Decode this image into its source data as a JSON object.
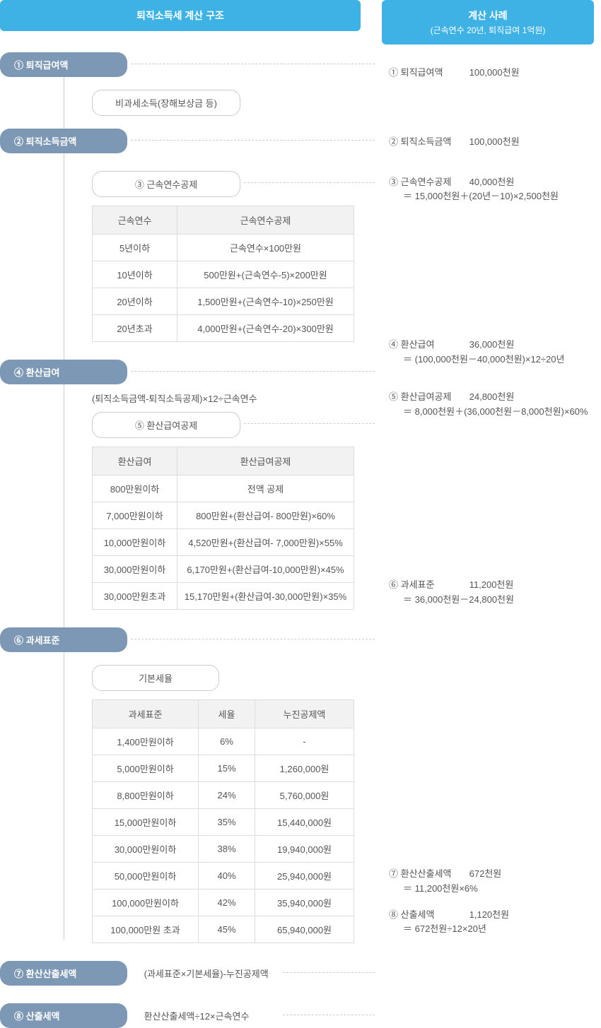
{
  "headers": {
    "left": "퇴직소득세 계산 구조",
    "right_title": "계산 사례",
    "right_sub": "(근속연수 20년, 퇴직급여 1억원)"
  },
  "steps": {
    "s1": {
      "badge": "① 퇴직급여액",
      "sub": "비과세소득(장해보상금 등)"
    },
    "s2": {
      "badge": "② 퇴직소득금액"
    },
    "s3": {
      "sub": "③ 근속연수공제"
    },
    "s4": {
      "badge": "④ 환산급여",
      "formula": "(퇴직소득금액-퇴직소득공제)×12÷근속연수"
    },
    "s5": {
      "sub": "⑤ 환산급여공제"
    },
    "s6": {
      "badge": "⑥ 과세표준",
      "sub": "기본세율"
    },
    "s7": {
      "badge": "⑦ 환산산출세액",
      "formula": "(과세표준×기본세율)-누진공제액"
    },
    "s8": {
      "badge": "⑧ 산출세액",
      "formula": "환산산출세액÷12×근속연수"
    }
  },
  "table1": {
    "headers": [
      "근속연수",
      "근속연수공제"
    ],
    "rows": [
      [
        "5년이하",
        "근속연수×100만원"
      ],
      [
        "10년이하",
        "500만원+(근속연수-5)×200만원"
      ],
      [
        "20년이하",
        "1,500만원+(근속연수-10)×250만원"
      ],
      [
        "20년초과",
        "4,000만원+(근속연수-20)×300만원"
      ]
    ],
    "col_widths": [
      "120px",
      "250px"
    ]
  },
  "table2": {
    "headers": [
      "환산급여",
      "환산급여공제"
    ],
    "rows": [
      [
        "800만원이하",
        "전액 공제"
      ],
      [
        "7,000만원이하",
        "800만원+(환산급여- 800만원)×60%"
      ],
      [
        "10,000만원이하",
        "4,520만원+(환산급여- 7,000만원)×55%"
      ],
      [
        "30,000만원이하",
        "6,170만원+(환산급여-10,000만원)×45%"
      ],
      [
        "30,000만원초과",
        "15,170만원+(환산급여-30,000만원)×35%"
      ]
    ],
    "col_widths": [
      "120px",
      "250px"
    ]
  },
  "table3": {
    "headers": [
      "과세표준",
      "세율",
      "누진공제액"
    ],
    "rows": [
      [
        "1,400만원이하",
        "6%",
        "-"
      ],
      [
        "5,000만원이하",
        "15%",
        "1,260,000원"
      ],
      [
        "8,800만원이하",
        "24%",
        "5,760,000원"
      ],
      [
        "15,000만원이하",
        "35%",
        "15,440,000원"
      ],
      [
        "30,000만원이하",
        "38%",
        "19,940,000원"
      ],
      [
        "50,000만원이하",
        "40%",
        "25,940,000원"
      ],
      [
        "100,000만원이하",
        "42%",
        "35,940,000원"
      ],
      [
        "100,000만원 초과",
        "45%",
        "65,940,000원"
      ]
    ],
    "col_widths": [
      "150px",
      "80px",
      "140px"
    ]
  },
  "examples": {
    "e1": {
      "label": "① 퇴직급여액",
      "value": "100,000천원"
    },
    "e2": {
      "label": "② 퇴직소득금액",
      "value": "100,000천원"
    },
    "e3": {
      "label": "③  근속연수공제",
      "value": "40,000천원",
      "formula": "＝ 15,000천원＋(20년－10)×2,500천원"
    },
    "e4": {
      "label": "④ 환산급여",
      "value": "36,000천원",
      "formula": "＝ (100,000천원－40,000천원)×12÷20년"
    },
    "e5": {
      "label": "⑤ 환산급여공제",
      "value": "24,800천원",
      "formula": "＝ 8,000천원＋(36,000천원－8,000천원)×60%"
    },
    "e6": {
      "label": "⑥ 과세표준",
      "value": "11,200천원",
      "formula": "＝ 36,000천원－24,800천원"
    },
    "e7": {
      "label": "⑦ 환산산출세액",
      "value": "672천원",
      "formula": "＝ 11,200천원×6%"
    },
    "e8": {
      "label": "⑧ 산출세액",
      "value": "1,120천원",
      "formula": "＝ 672천원÷12×20년"
    }
  },
  "colors": {
    "header_bg": "#3eb2e5",
    "badge_bg": "#7d98b4",
    "border": "#cccccc",
    "table_header_bg": "#f2f2f2",
    "text": "#555555"
  }
}
